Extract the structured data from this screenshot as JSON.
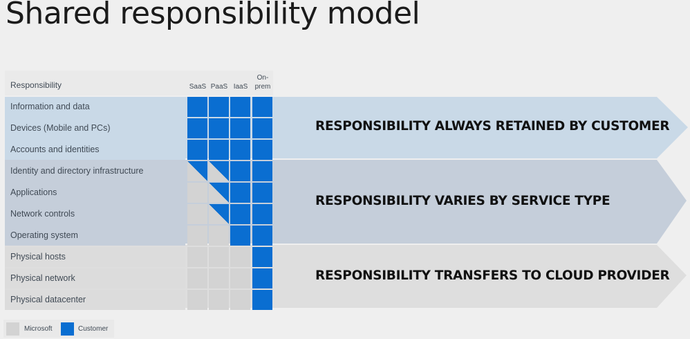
{
  "title": "Shared responsibility model",
  "colors": {
    "customer": "#0a6ed1",
    "microsoft": "#d3d3d3",
    "band_customer": "#c9d9e7",
    "band_varies": "#c5ceda",
    "band_provider": "#dedede",
    "row_customer": "#c9d9e7",
    "row_varies": "#c5ceda",
    "row_provider": "#dcdcdc"
  },
  "table": {
    "header": "Responsibility",
    "columns": [
      "SaaS",
      "PaaS",
      "IaaS",
      "On-prem"
    ],
    "rows": [
      {
        "label": "Information and data",
        "cells": [
          "C",
          "C",
          "C",
          "C"
        ],
        "group": "customer"
      },
      {
        "label": "Devices (Mobile and PCs)",
        "cells": [
          "C",
          "C",
          "C",
          "C"
        ],
        "group": "customer"
      },
      {
        "label": "Accounts and identities",
        "cells": [
          "C",
          "C",
          "C",
          "C"
        ],
        "group": "customer"
      },
      {
        "label": "Identity and directory infrastructure",
        "cells": [
          "S",
          "S",
          "C",
          "C"
        ],
        "group": "varies"
      },
      {
        "label": "Applications",
        "cells": [
          "M",
          "S",
          "C",
          "C"
        ],
        "group": "varies"
      },
      {
        "label": "Network controls",
        "cells": [
          "M",
          "S",
          "C",
          "C"
        ],
        "group": "varies"
      },
      {
        "label": "Operating system",
        "cells": [
          "M",
          "M",
          "C",
          "C"
        ],
        "group": "varies"
      },
      {
        "label": "Physical hosts",
        "cells": [
          "M",
          "M",
          "M",
          "C"
        ],
        "group": "provider"
      },
      {
        "label": "Physical network",
        "cells": [
          "M",
          "M",
          "M",
          "C"
        ],
        "group": "provider"
      },
      {
        "label": "Physical datacenter",
        "cells": [
          "M",
          "M",
          "M",
          "C"
        ],
        "group": "provider"
      }
    ]
  },
  "bands": [
    {
      "label": "RESPONSIBILITY ALWAYS RETAINED BY CUSTOMER"
    },
    {
      "label": "RESPONSIBILITY VARIES BY SERVICE TYPE"
    },
    {
      "label": "RESPONSIBILITY TRANSFERS TO CLOUD PROVIDER"
    }
  ],
  "legend": [
    {
      "label": "Microsoft"
    },
    {
      "label": "Customer"
    }
  ]
}
